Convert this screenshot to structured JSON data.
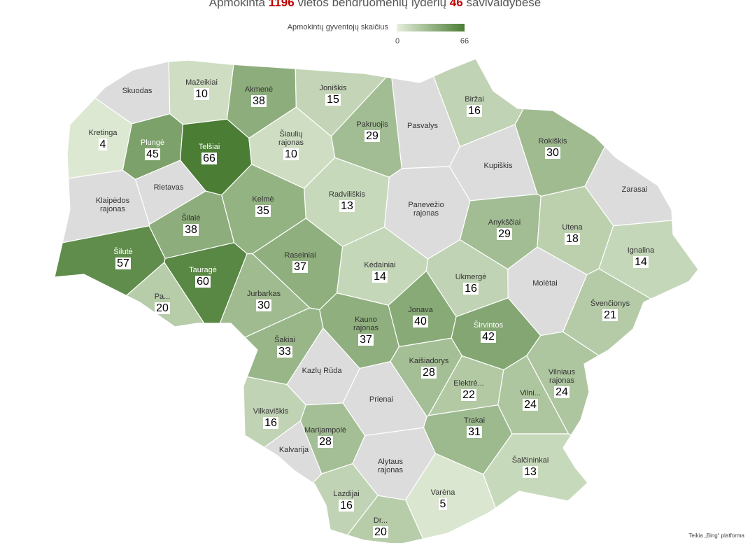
{
  "header": {
    "prefix": "Apmokinta",
    "trained": 1196,
    "middle": "vietos bendruomenių lyderių",
    "municipalities": 46,
    "suffix": "savivaldybėse"
  },
  "legend": {
    "title": "Apmokintų gyventojų skaičius",
    "min": 0,
    "max": 66,
    "low_color": "#e6efdc",
    "high_color": "#4b7d35",
    "no_data_color": "#dcdcdc"
  },
  "regions": [
    {
      "name": "Mažeikiai",
      "value": 10
    },
    {
      "name": "Akmenė",
      "value": 38
    },
    {
      "name": "Joniškis",
      "value": 15
    },
    {
      "name": "Skuodas",
      "value": null
    },
    {
      "name": "Biržai",
      "value": 16
    },
    {
      "name": "Pakruojis",
      "value": 29
    },
    {
      "name": "Pasvalys",
      "value": null
    },
    {
      "name": "Kretinga",
      "value": 4
    },
    {
      "name": "Plungė",
      "value": 45
    },
    {
      "name": "Telšiai",
      "value": 66
    },
    {
      "name": "Šiaulių rajonas",
      "value": 10
    },
    {
      "name": "Rokiškis",
      "value": 30
    },
    {
      "name": "Kupiškis",
      "value": null
    },
    {
      "name": "Rietavas",
      "value": null
    },
    {
      "name": "Zarasai",
      "value": null
    },
    {
      "name": "Radviliškis",
      "value": 13
    },
    {
      "name": "Klaipėdos rajonas",
      "value": null
    },
    {
      "name": "Kelmė",
      "value": 35
    },
    {
      "name": "Panevėžio rajonas",
      "value": null
    },
    {
      "name": "Šilalė",
      "value": 38
    },
    {
      "name": "Anykščiai",
      "value": 29
    },
    {
      "name": "Utena",
      "value": 18
    },
    {
      "name": "Šilutė",
      "value": 57
    },
    {
      "name": "Ignalina",
      "value": 14
    },
    {
      "name": "Raseiniai",
      "value": 37
    },
    {
      "name": "Tauragė",
      "value": 60
    },
    {
      "name": "Kėdainiai",
      "value": 14
    },
    {
      "name": "Ukmergė",
      "value": 16
    },
    {
      "name": "Molėtai",
      "value": null
    },
    {
      "name": "Jurbarkas",
      "value": 30
    },
    {
      "name": "Pa...",
      "value": 20
    },
    {
      "name": "Švenčionys",
      "value": 21
    },
    {
      "name": "Jonava",
      "value": 40
    },
    {
      "name": "Kauno rajonas",
      "value": 37
    },
    {
      "name": "Širvintos",
      "value": 42
    },
    {
      "name": "Šakiai",
      "value": 33
    },
    {
      "name": "Kazlų Rūda",
      "value": null
    },
    {
      "name": "Kaišiadorys",
      "value": 28
    },
    {
      "name": "Elektrė...",
      "value": 22
    },
    {
      "name": "Vilniaus rajonas",
      "value": 24
    },
    {
      "name": "Vilni...",
      "value": 24
    },
    {
      "name": "Prienai",
      "value": null
    },
    {
      "name": "Vilkaviškis",
      "value": 16
    },
    {
      "name": "Marijampolė",
      "value": 28
    },
    {
      "name": "Trakai",
      "value": 31
    },
    {
      "name": "Kalvarija",
      "value": null
    },
    {
      "name": "Šalčininkai",
      "value": 13
    },
    {
      "name": "Alytaus rajonas",
      "value": null
    },
    {
      "name": "Varėna",
      "value": 5
    },
    {
      "name": "Lazdijai",
      "value": 16
    },
    {
      "name": "Dr...",
      "value": 20
    }
  ],
  "footer": "Teikia „Bing“ platforma"
}
